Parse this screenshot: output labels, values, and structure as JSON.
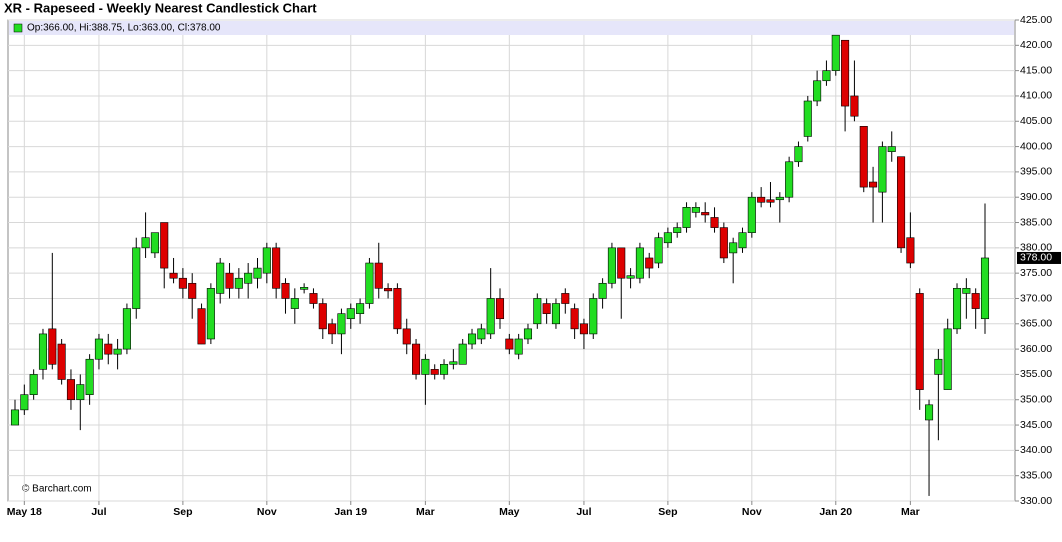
{
  "chart_data": {
    "type": "candlestick",
    "title": "XR - Rapeseed - Weekly Nearest Candlestick Chart",
    "legend_text": "Op:366.00, Hi:388.75, Lo:363.00, Cl:378.00",
    "last_price_label": "378.00",
    "credit": "© Barchart.com",
    "up_color": "#22dd22",
    "down_color": "#dd0000",
    "grid": true,
    "categories": [
      null,
      "May 18",
      null,
      null,
      null,
      null,
      null,
      null,
      null,
      "Jul",
      null,
      null,
      null,
      null,
      null,
      null,
      null,
      null,
      "Sep",
      null,
      null,
      null,
      null,
      null,
      null,
      null,
      null,
      "Nov",
      null,
      null,
      null,
      null,
      null,
      null,
      null,
      null,
      "Jan 19",
      null,
      null,
      null,
      null,
      null,
      null,
      null,
      "Mar",
      null,
      null,
      null,
      null,
      null,
      null,
      null,
      null,
      "May",
      null,
      null,
      null,
      null,
      null,
      null,
      null,
      "Jul",
      null,
      null,
      null,
      null,
      null,
      null,
      null,
      null,
      "Sep",
      null,
      null,
      null,
      null,
      null,
      null,
      null,
      null,
      "Nov",
      null,
      null,
      null,
      null,
      null,
      null,
      null,
      null,
      "Jan 20",
      null,
      null,
      null,
      null,
      null,
      null,
      null,
      "Mar",
      null,
      null,
      null,
      null,
      null,
      null,
      null,
      null
    ],
    "open": [
      345,
      348,
      351,
      356,
      364,
      361,
      354,
      350,
      351,
      358,
      361,
      359,
      360,
      368,
      380,
      379,
      385,
      375,
      374,
      373,
      368,
      362,
      371,
      375,
      372,
      373,
      374,
      375,
      380,
      373,
      368,
      371.8,
      371,
      369,
      365,
      363,
      366,
      367,
      369,
      377,
      372,
      372,
      364,
      361,
      355,
      356,
      355,
      357,
      357,
      361,
      362,
      363,
      370,
      362,
      359,
      362,
      365,
      369,
      365,
      371,
      368,
      365,
      363,
      370,
      373,
      380,
      374,
      374,
      378,
      377,
      381,
      383,
      384,
      387,
      387,
      386,
      384,
      379,
      380,
      383,
      390,
      389.5,
      389.5,
      390,
      397,
      402,
      409,
      413,
      415,
      421,
      410,
      404,
      393,
      391,
      399,
      398,
      382,
      371,
      346,
      355,
      352,
      364,
      371,
      371,
      366
    ],
    "high": [
      350,
      353,
      356,
      364,
      379,
      362,
      356,
      355,
      359,
      363,
      363,
      362,
      369,
      382,
      387,
      383,
      385,
      378,
      376,
      375,
      369,
      373,
      378,
      377,
      376,
      377,
      378,
      381,
      381,
      374,
      372,
      373,
      372,
      370,
      366,
      368,
      369,
      370,
      378,
      381,
      373,
      373,
      366,
      362,
      359,
      357,
      358,
      360,
      362,
      364,
      365,
      376,
      372,
      363,
      363,
      365,
      371,
      370,
      370,
      372,
      369,
      366,
      371,
      374,
      381,
      380,
      376,
      381,
      379,
      383,
      384,
      385,
      389,
      389,
      389,
      388,
      385,
      382,
      384,
      391,
      392,
      393,
      391,
      398,
      401,
      410,
      415,
      417,
      422,
      421,
      417,
      404,
      396,
      401,
      403,
      398,
      387,
      372,
      350,
      360,
      366,
      373,
      374,
      372,
      388.75
    ],
    "low": [
      345,
      347,
      350,
      354,
      356,
      353,
      348,
      344,
      349,
      356,
      357,
      356,
      359,
      366,
      378,
      378,
      372,
      373,
      370,
      366,
      361,
      361,
      369,
      370,
      370,
      370,
      372,
      373,
      370,
      367,
      365,
      371,
      368,
      362,
      361,
      359,
      364,
      365,
      368,
      370,
      370,
      363,
      359,
      354,
      349,
      354,
      354,
      356,
      357,
      360,
      361,
      362,
      364,
      359,
      358,
      361,
      364,
      365,
      364,
      367,
      362,
      360,
      362,
      368,
      372,
      366,
      372,
      373,
      374,
      376,
      380,
      382,
      383,
      386,
      385,
      383,
      377,
      373,
      379,
      382,
      388,
      388,
      385,
      389,
      396,
      401,
      408,
      412,
      414,
      403,
      405,
      391,
      385,
      385,
      397,
      379,
      376,
      348,
      331,
      342,
      352,
      363,
      366,
      364,
      363
    ],
    "close": [
      348,
      351,
      355,
      363,
      357,
      354,
      350,
      353,
      358,
      362,
      359,
      360,
      368,
      380,
      382,
      383,
      376,
      374,
      372,
      370,
      361,
      372,
      377,
      372,
      374,
      375,
      376,
      380,
      372,
      370,
      370,
      372.2,
      369,
      364,
      363,
      367,
      368,
      369,
      377,
      372,
      371.5,
      364,
      361,
      355,
      358,
      355,
      357,
      357.5,
      361,
      363,
      364,
      370,
      366,
      360,
      362,
      364,
      370,
      367,
      369,
      369,
      364,
      363,
      370,
      373,
      380,
      374,
      374.5,
      380,
      376,
      382,
      383,
      384,
      388,
      388,
      386.5,
      384,
      378,
      381,
      383,
      390,
      389,
      389,
      390,
      397,
      400,
      409,
      413,
      415,
      422,
      408,
      406,
      392,
      392,
      400,
      400,
      380,
      377,
      352,
      349,
      358,
      364,
      372,
      372,
      368,
      378
    ],
    "ylim": [
      330,
      425
    ],
    "yticks": [
      {
        "value": 330,
        "label": "330.00"
      },
      {
        "value": 335,
        "label": "335.00"
      },
      {
        "value": 340,
        "label": "340.00"
      },
      {
        "value": 345,
        "label": "345.00"
      },
      {
        "value": 350,
        "label": "350.00"
      },
      {
        "value": 355,
        "label": "355.00"
      },
      {
        "value": 360,
        "label": "360.00"
      },
      {
        "value": 365,
        "label": "365.00"
      },
      {
        "value": 370,
        "label": "370.00"
      },
      {
        "value": 375,
        "label": "375.00"
      },
      {
        "value": 380,
        "label": "380.00"
      },
      {
        "value": 385,
        "label": "385.00"
      },
      {
        "value": 390,
        "label": "390.00"
      },
      {
        "value": 395,
        "label": "395.00"
      },
      {
        "value": 400,
        "label": "400.00"
      },
      {
        "value": 405,
        "label": "405.00"
      },
      {
        "value": 410,
        "label": "410.00"
      },
      {
        "value": 415,
        "label": "415.00"
      },
      {
        "value": 420,
        "label": "420.00"
      },
      {
        "value": 425,
        "label": "425.00"
      }
    ]
  }
}
